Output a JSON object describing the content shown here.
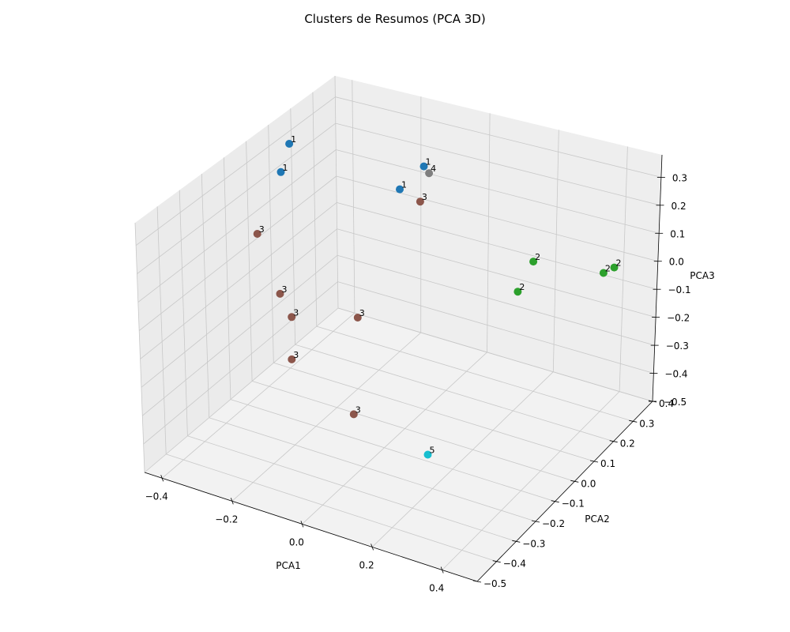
{
  "chart_data": {
    "type": "scatter",
    "subtype": "3d",
    "title": "Clusters de Resumos (PCA 3D)",
    "xlabel": "PCA1",
    "ylabel": "PCA2",
    "zlabel": "PCA3",
    "xlim": [
      -0.45,
      0.5
    ],
    "ylim": [
      -0.5,
      0.4
    ],
    "zlim": [
      -0.5,
      0.38
    ],
    "xticks": [
      "−0.4",
      "−0.2",
      "0.0",
      "0.2",
      "0.4"
    ],
    "yticks": [
      "−0.5",
      "−0.4",
      "−0.3",
      "−0.2",
      "−0.1",
      "0.0",
      "0.1",
      "0.2",
      "0.3",
      "0.4"
    ],
    "zticks": [
      "−0.5",
      "−0.4",
      "−0.3",
      "−0.2",
      "−0.1",
      "0.0",
      "0.1",
      "0.2",
      "0.3"
    ],
    "grid": true,
    "cluster_colors": {
      "1": "#1f77b4",
      "2": "#2ca02c",
      "3": "#8c564b",
      "4": "#7f7f7f",
      "5": "#17becf"
    },
    "points": [
      {
        "cluster": "1",
        "label": "1",
        "x": -0.43,
        "y": 0.16,
        "z": 0.28
      },
      {
        "cluster": "1",
        "label": "1",
        "x": -0.43,
        "y": 0.12,
        "z": 0.2
      },
      {
        "cluster": "1",
        "label": "1",
        "x": -0.2,
        "y": 0.3,
        "z": 0.1
      },
      {
        "cluster": "1",
        "label": "1",
        "x": -0.1,
        "y": 0.25,
        "z": 0.25
      },
      {
        "cluster": "4",
        "label": "4",
        "x": -0.085,
        "y": 0.25,
        "z": 0.23
      },
      {
        "cluster": "3",
        "label": "3",
        "x": -0.27,
        "y": -0.25,
        "z": 0.26
      },
      {
        "cluster": "3",
        "label": "3",
        "x": -0.08,
        "y": 0.2,
        "z": 0.16
      },
      {
        "cluster": "3",
        "label": "3",
        "x": -0.3,
        "y": -0.1,
        "z": -0.06
      },
      {
        "cluster": "3",
        "label": "3",
        "x": -0.33,
        "y": 0.0,
        "z": -0.22
      },
      {
        "cluster": "3",
        "label": "3",
        "x": -0.2,
        "y": 0.1,
        "z": -0.24
      },
      {
        "cluster": "3",
        "label": "3",
        "x": -0.3,
        "y": -0.05,
        "z": -0.33
      },
      {
        "cluster": "3",
        "label": "3",
        "x": -0.12,
        "y": -0.05,
        "z": -0.46
      },
      {
        "cluster": "2",
        "label": "2",
        "x": 0.22,
        "y": 0.25,
        "z": 0.01
      },
      {
        "cluster": "2",
        "label": "2",
        "x": 0.4,
        "y": 0.35,
        "z": -0.02
      },
      {
        "cluster": "2",
        "label": "2",
        "x": 0.25,
        "y": 0.12,
        "z": 0.0
      },
      {
        "cluster": "2",
        "label": "2",
        "x": 0.45,
        "y": 0.2,
        "z": 0.08
      },
      {
        "cluster": "5",
        "label": "5",
        "x": 0.25,
        "y": -0.32,
        "z": -0.28
      }
    ]
  }
}
